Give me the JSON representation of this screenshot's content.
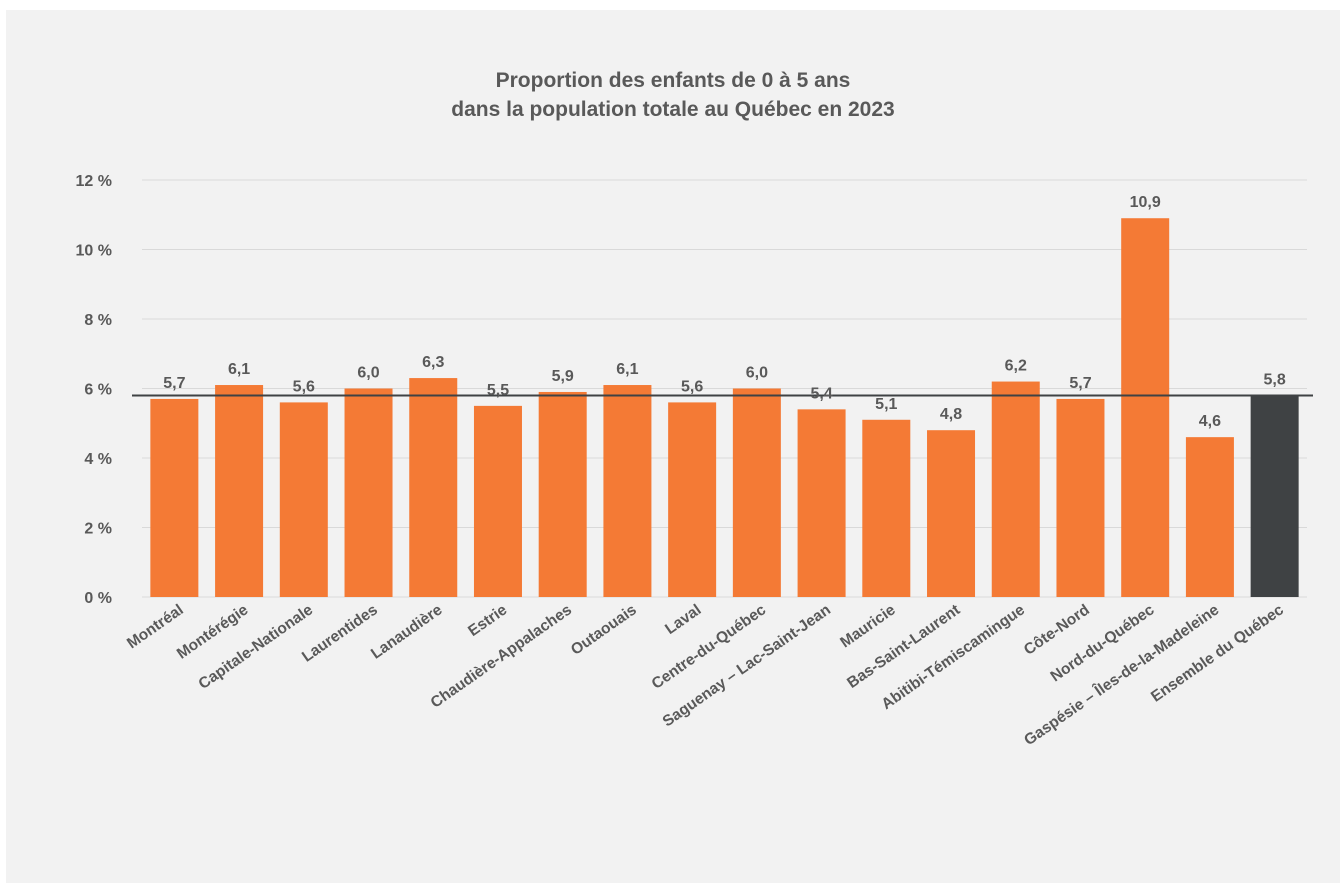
{
  "chart_data": {
    "type": "bar",
    "title": [
      "Proportion des enfants de 0 à 5 ans",
      "dans la population totale au Québec en 2023"
    ],
    "xlabel": "",
    "ylabel": "",
    "ylim": [
      0,
      12
    ],
    "y_ticks": [
      "0 %",
      "2 %",
      "4 %",
      "6 %",
      "8 %",
      "10 %",
      "12 %"
    ],
    "y_tick_values": [
      0,
      2,
      4,
      6,
      8,
      10,
      12
    ],
    "categories": [
      "Montréal",
      "Montérégie",
      "Capitale-Nationale",
      "Laurentides",
      "Lanaudière",
      "Estrie",
      "Chaudière-Appalaches",
      "Outaouais",
      "Laval",
      "Centre-du-Québec",
      "Saguenay – Lac-Saint-Jean",
      "Mauricie",
      "Bas-Saint-Laurent",
      "Abitibi-Témiscamingue",
      "Côte-Nord",
      "Nord-du-Québec",
      "Gaspésie – Îles-de-la-Madeleine",
      "Ensemble du Québec"
    ],
    "values": [
      5.7,
      6.1,
      5.6,
      6.0,
      6.3,
      5.5,
      5.9,
      6.1,
      5.6,
      6.0,
      5.4,
      5.1,
      4.8,
      6.2,
      5.7,
      10.9,
      4.6,
      5.8
    ],
    "value_labels": [
      "5,7",
      "6,1",
      "5,6",
      "6,0",
      "6,3",
      "5,5",
      "5,9",
      "6,1",
      "5,6",
      "6,0",
      "5,4",
      "5,1",
      "4,8",
      "6,2",
      "5,7",
      "10,9",
      "4,6",
      "5,8"
    ],
    "highlight_category": "Ensemble du Québec",
    "reference_line_value": 5.8,
    "grid": true,
    "legend": "none",
    "colors": {
      "bar": "#f47a35",
      "highlight_bar": "#3f4244",
      "reference_line": "#3f4244",
      "grid": "#d9d9d9",
      "text": "#595959",
      "background": "#f2f2f2"
    }
  }
}
